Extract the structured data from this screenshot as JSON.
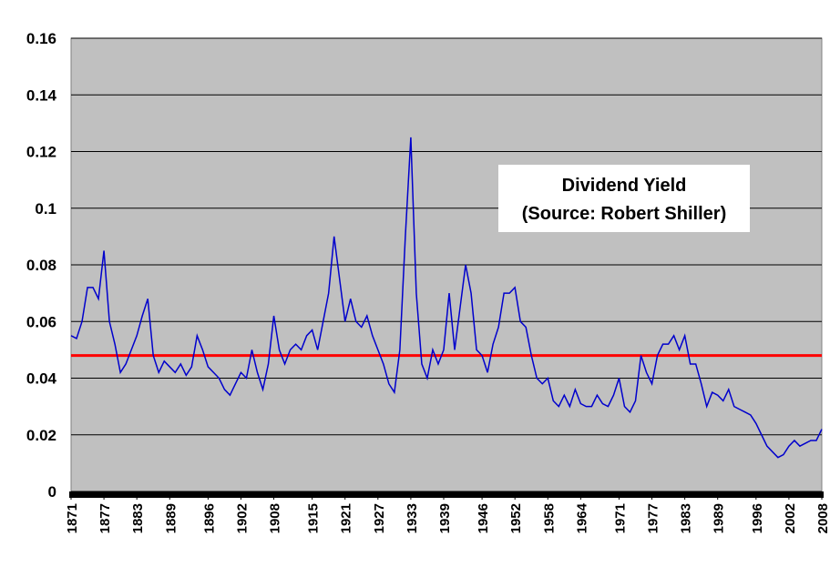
{
  "chart_data": {
    "type": "line",
    "annotation": [
      "Dividend Yield",
      "(Source: Robert Shiller)"
    ],
    "x": [
      1871,
      1872,
      1873,
      1874,
      1875,
      1876,
      1877,
      1878,
      1879,
      1880,
      1881,
      1882,
      1883,
      1884,
      1885,
      1886,
      1887,
      1888,
      1889,
      1890,
      1891,
      1892,
      1893,
      1894,
      1895,
      1896,
      1897,
      1898,
      1899,
      1900,
      1901,
      1902,
      1903,
      1904,
      1905,
      1906,
      1907,
      1908,
      1909,
      1910,
      1911,
      1912,
      1913,
      1914,
      1915,
      1916,
      1917,
      1918,
      1919,
      1920,
      1921,
      1922,
      1923,
      1924,
      1925,
      1926,
      1927,
      1928,
      1929,
      1930,
      1931,
      1932,
      1933,
      1934,
      1935,
      1936,
      1937,
      1938,
      1939,
      1940,
      1941,
      1942,
      1943,
      1944,
      1945,
      1946,
      1947,
      1948,
      1949,
      1950,
      1951,
      1952,
      1953,
      1954,
      1955,
      1956,
      1957,
      1958,
      1959,
      1960,
      1961,
      1962,
      1963,
      1964,
      1965,
      1966,
      1967,
      1968,
      1969,
      1970,
      1971,
      1972,
      1973,
      1974,
      1975,
      1976,
      1977,
      1978,
      1979,
      1980,
      1981,
      1982,
      1983,
      1984,
      1985,
      1986,
      1987,
      1988,
      1989,
      1990,
      1991,
      1992,
      1993,
      1994,
      1995,
      1996,
      1997,
      1998,
      1999,
      2000,
      2001,
      2002,
      2003,
      2004,
      2005,
      2006,
      2007,
      2008
    ],
    "series": [
      {
        "color": "#0000cc",
        "values": [
          0.055,
          0.054,
          0.06,
          0.072,
          0.072,
          0.068,
          0.085,
          0.06,
          0.052,
          0.042,
          0.045,
          0.05,
          0.055,
          0.062,
          0.068,
          0.048,
          0.042,
          0.046,
          0.044,
          0.042,
          0.045,
          0.041,
          0.044,
          0.055,
          0.05,
          0.044,
          0.042,
          0.04,
          0.036,
          0.034,
          0.038,
          0.042,
          0.04,
          0.05,
          0.042,
          0.036,
          0.045,
          0.062,
          0.05,
          0.045,
          0.05,
          0.052,
          0.05,
          0.055,
          0.057,
          0.05,
          0.06,
          0.07,
          0.09,
          0.075,
          0.06,
          0.068,
          0.06,
          0.058,
          0.062,
          0.055,
          0.05,
          0.045,
          0.038,
          0.035,
          0.05,
          0.09,
          0.125,
          0.07,
          0.045,
          0.04,
          0.05,
          0.045,
          0.05,
          0.07,
          0.05,
          0.065,
          0.08,
          0.07,
          0.05,
          0.048,
          0.042,
          0.052,
          0.058,
          0.07,
          0.07,
          0.072,
          0.06,
          0.058,
          0.048,
          0.04,
          0.038,
          0.04,
          0.032,
          0.03,
          0.034,
          0.03,
          0.036,
          0.031,
          0.03,
          0.03,
          0.034,
          0.031,
          0.03,
          0.034,
          0.04,
          0.03,
          0.028,
          0.032,
          0.048,
          0.042,
          0.038,
          0.048,
          0.052,
          0.052,
          0.055,
          0.05,
          0.055,
          0.045,
          0.045,
          0.038,
          0.03,
          0.035,
          0.034,
          0.032,
          0.036,
          0.03,
          0.029,
          0.028,
          0.027,
          0.024,
          0.02,
          0.016,
          0.014,
          0.012,
          0.013,
          0.016,
          0.018,
          0.016,
          0.017,
          0.018,
          0.018,
          0.022
        ]
      }
    ],
    "reference_line": {
      "value": 0.048,
      "color": "#ff0000"
    },
    "xlim": [
      1871,
      2008
    ],
    "xticks": [
      1871,
      1877,
      1883,
      1889,
      1896,
      1902,
      1908,
      1915,
      1921,
      1927,
      1933,
      1939,
      1946,
      1952,
      1958,
      1964,
      1971,
      1977,
      1983,
      1989,
      1996,
      2002,
      2008
    ],
    "ylim": [
      0,
      0.16
    ],
    "yticks": [
      0,
      0.02,
      0.04,
      0.06,
      0.08,
      0.1,
      0.12,
      0.14,
      0.16
    ],
    "grid": true
  }
}
